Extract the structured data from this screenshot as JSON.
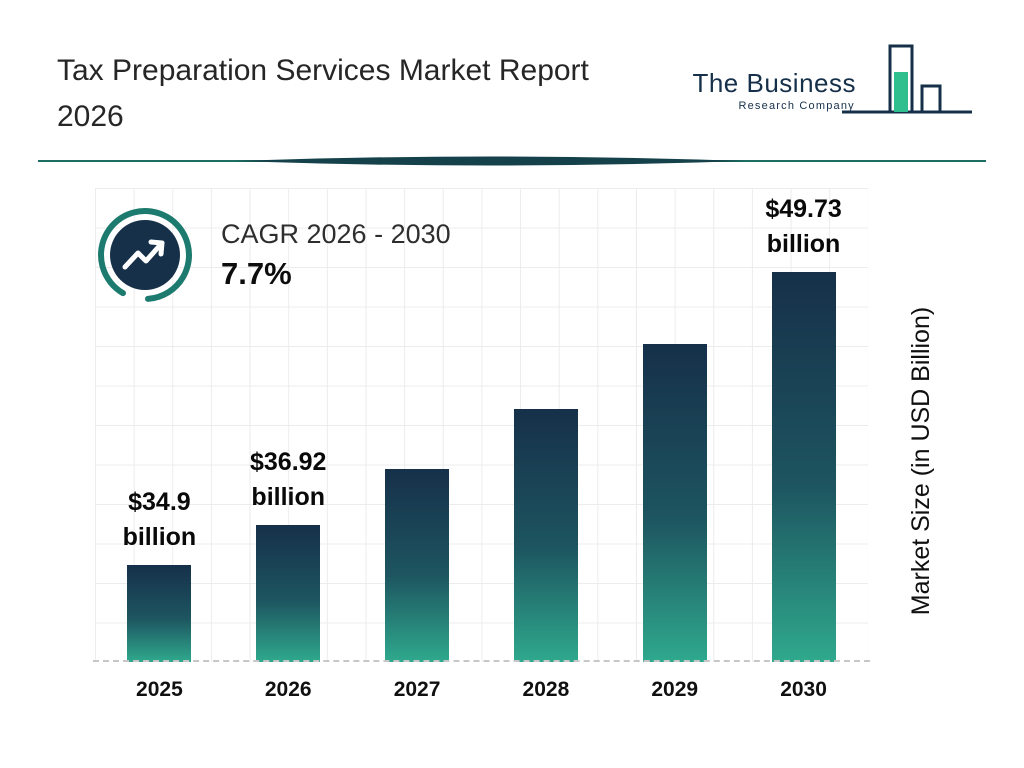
{
  "header": {
    "title_line1": "Tax Preparation Services Market Report",
    "title_line2": "2026",
    "logo": {
      "name": "The Business",
      "subtitle": "Research Company"
    }
  },
  "cagr": {
    "label": "CAGR 2026 - 2030",
    "value": "7.7%"
  },
  "colors": {
    "navy": "#16304a",
    "accent_teal": "#1d7a6e",
    "logo_green": "#2fbf8f",
    "bar_gradient_top": "#16304a",
    "bar_gradient_bottom": "#2fa98d",
    "grid": "#ececec",
    "text": "#101010"
  },
  "chart_data": {
    "type": "bar",
    "title": "Tax Preparation Services Market Report 2026",
    "categories": [
      "2025",
      "2026",
      "2027",
      "2028",
      "2029",
      "2030"
    ],
    "values": [
      34.9,
      36.92,
      39.76,
      42.82,
      46.12,
      49.73
    ],
    "labeled_values": [
      {
        "index": 0,
        "line1": "$34.9",
        "line2": "billion"
      },
      {
        "index": 1,
        "line1": "$36.92",
        "line2": "billion"
      },
      {
        "index": 5,
        "line1": "$49.73",
        "line2": "billion"
      }
    ],
    "xlabel": "",
    "ylabel": "Market Size (in USD Billion)",
    "ylim": [
      30,
      54
    ],
    "grid": true,
    "legend": false
  }
}
